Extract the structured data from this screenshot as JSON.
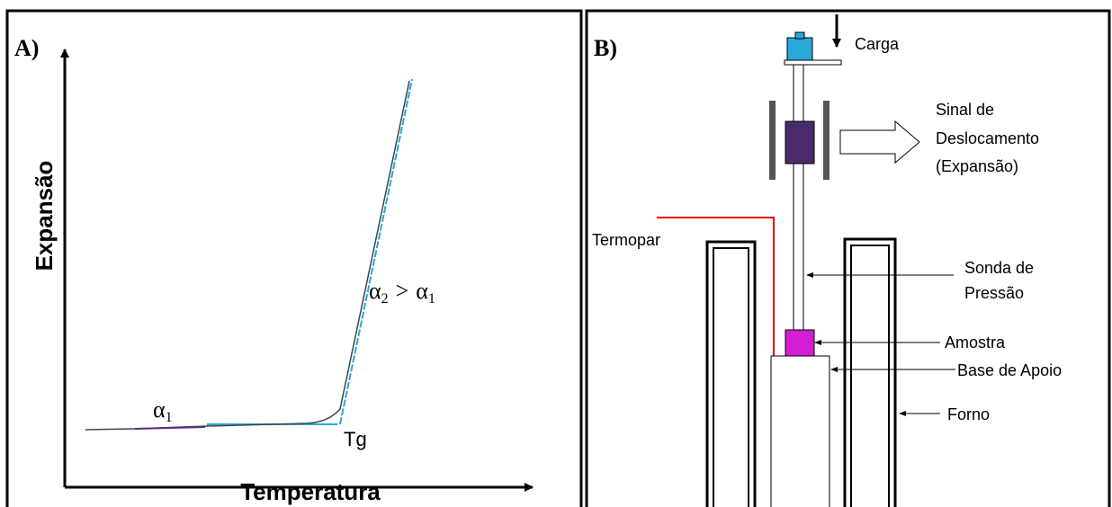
{
  "panel_a": {
    "label": "A)",
    "y_axis_title": "Expansão",
    "x_axis_title": "Temperatura",
    "alpha1": {
      "base": "α",
      "sub": "1"
    },
    "slope_label": {
      "left": {
        "base": "α",
        "sub": "2"
      },
      "operator": ">",
      "right": {
        "base": "α",
        "sub": "1"
      }
    },
    "tg_label": "Tg"
  },
  "panel_b": {
    "label": "B)",
    "load": "Carga",
    "signal": [
      "Sinal de",
      "Deslocamento",
      "(Expansão)"
    ],
    "thermocouple": "Termopar",
    "probe": [
      "Sonda de",
      "Pressão"
    ],
    "sample": "Amostra",
    "base": "Base de Apoio",
    "furnace": "Forno"
  }
}
